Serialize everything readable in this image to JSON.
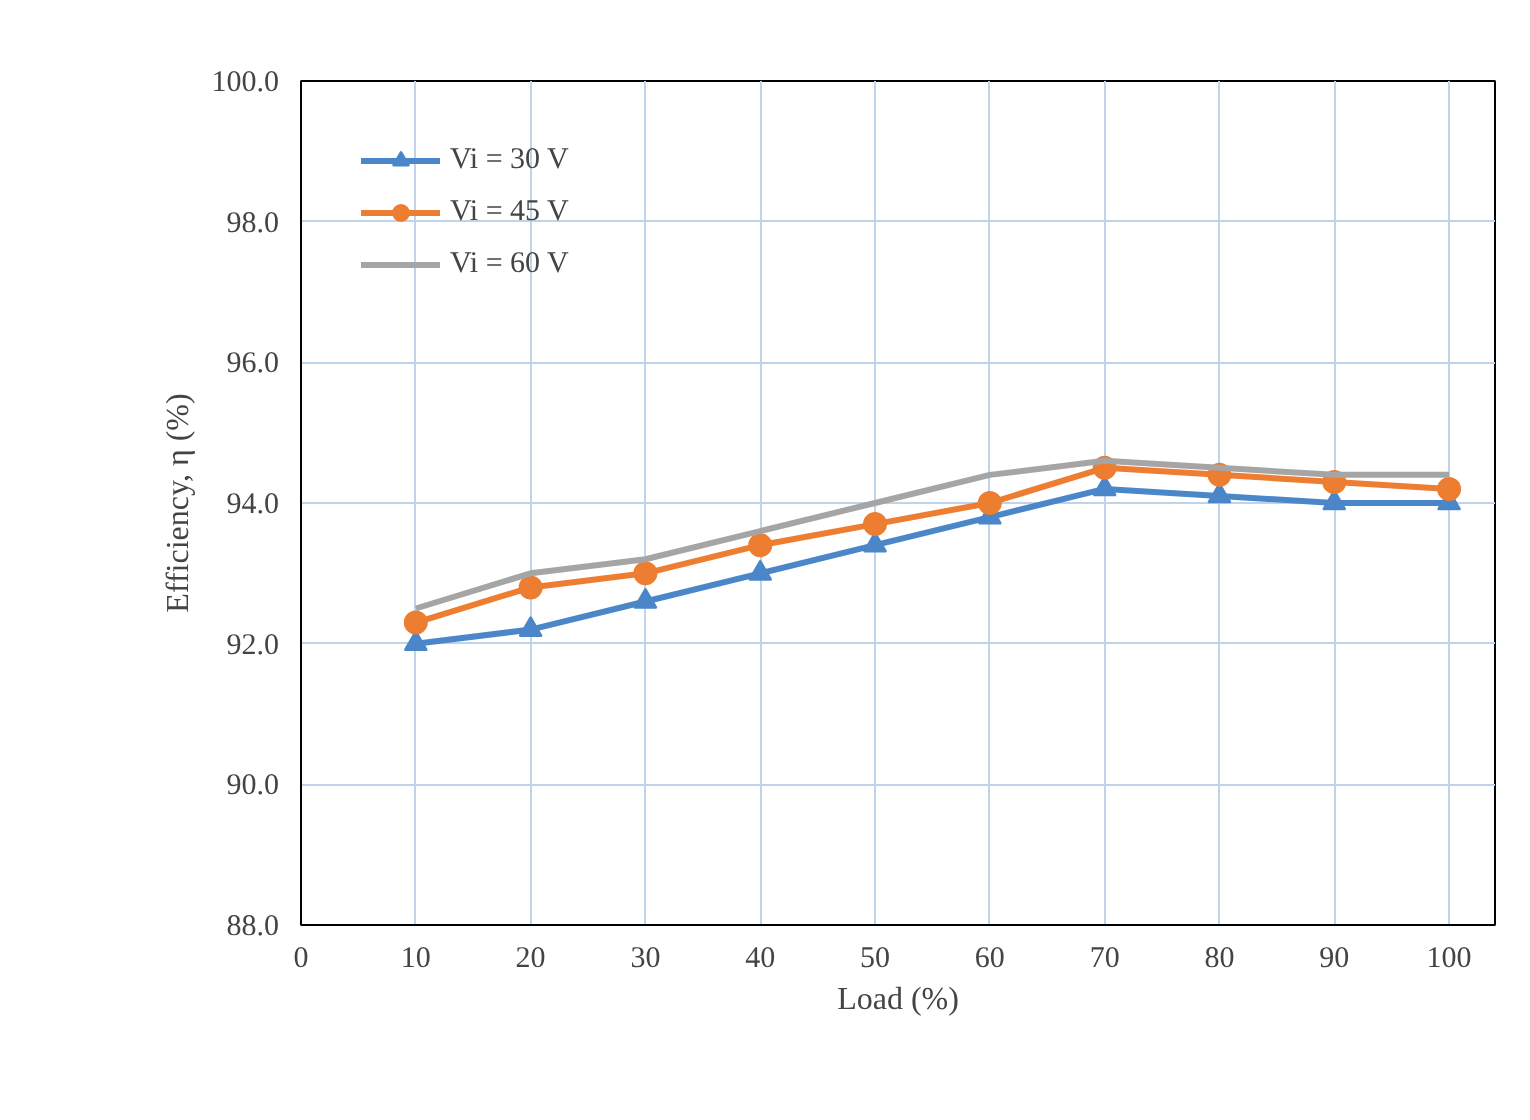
{
  "chart_data": {
    "type": "line",
    "xlabel": "Load (%)",
    "ylabel": "Efficiency, η (%)",
    "x": [
      10,
      20,
      30,
      40,
      50,
      60,
      70,
      80,
      90,
      100
    ],
    "series": [
      {
        "name": "Vi = 30 V",
        "color": "#4a86c8",
        "marker": "triangle",
        "values": [
          92.0,
          92.2,
          92.6,
          93.0,
          93.4,
          93.8,
          94.2,
          94.1,
          94.0,
          94.0
        ]
      },
      {
        "name": "Vi = 45 V",
        "color": "#ed7d31",
        "marker": "circle",
        "values": [
          92.3,
          92.8,
          93.0,
          93.4,
          93.7,
          94.0,
          94.5,
          94.4,
          94.3,
          94.2
        ]
      },
      {
        "name": "Vi = 60 V",
        "color": "#a5a5a5",
        "marker": "none",
        "values": [
          92.5,
          93.0,
          93.2,
          93.6,
          94.0,
          94.4,
          94.6,
          94.5,
          94.4,
          94.4
        ]
      }
    ],
    "xlim": [
      0,
      104
    ],
    "xticks": [
      0,
      10,
      20,
      30,
      40,
      50,
      60,
      70,
      80,
      90,
      100
    ],
    "ylim": [
      88,
      100
    ],
    "yticks": [
      {
        "value": 88,
        "label": "88.0"
      },
      {
        "value": 90,
        "label": "90.0"
      },
      {
        "value": 92,
        "label": "92.0"
      },
      {
        "value": 94,
        "label": "94.0"
      },
      {
        "value": 96,
        "label": "96.0"
      },
      {
        "value": 98,
        "label": "98.0"
      },
      {
        "value": 100,
        "label": "100.0"
      }
    ],
    "grid": true,
    "legend": "top left",
    "line_style": "solid"
  }
}
